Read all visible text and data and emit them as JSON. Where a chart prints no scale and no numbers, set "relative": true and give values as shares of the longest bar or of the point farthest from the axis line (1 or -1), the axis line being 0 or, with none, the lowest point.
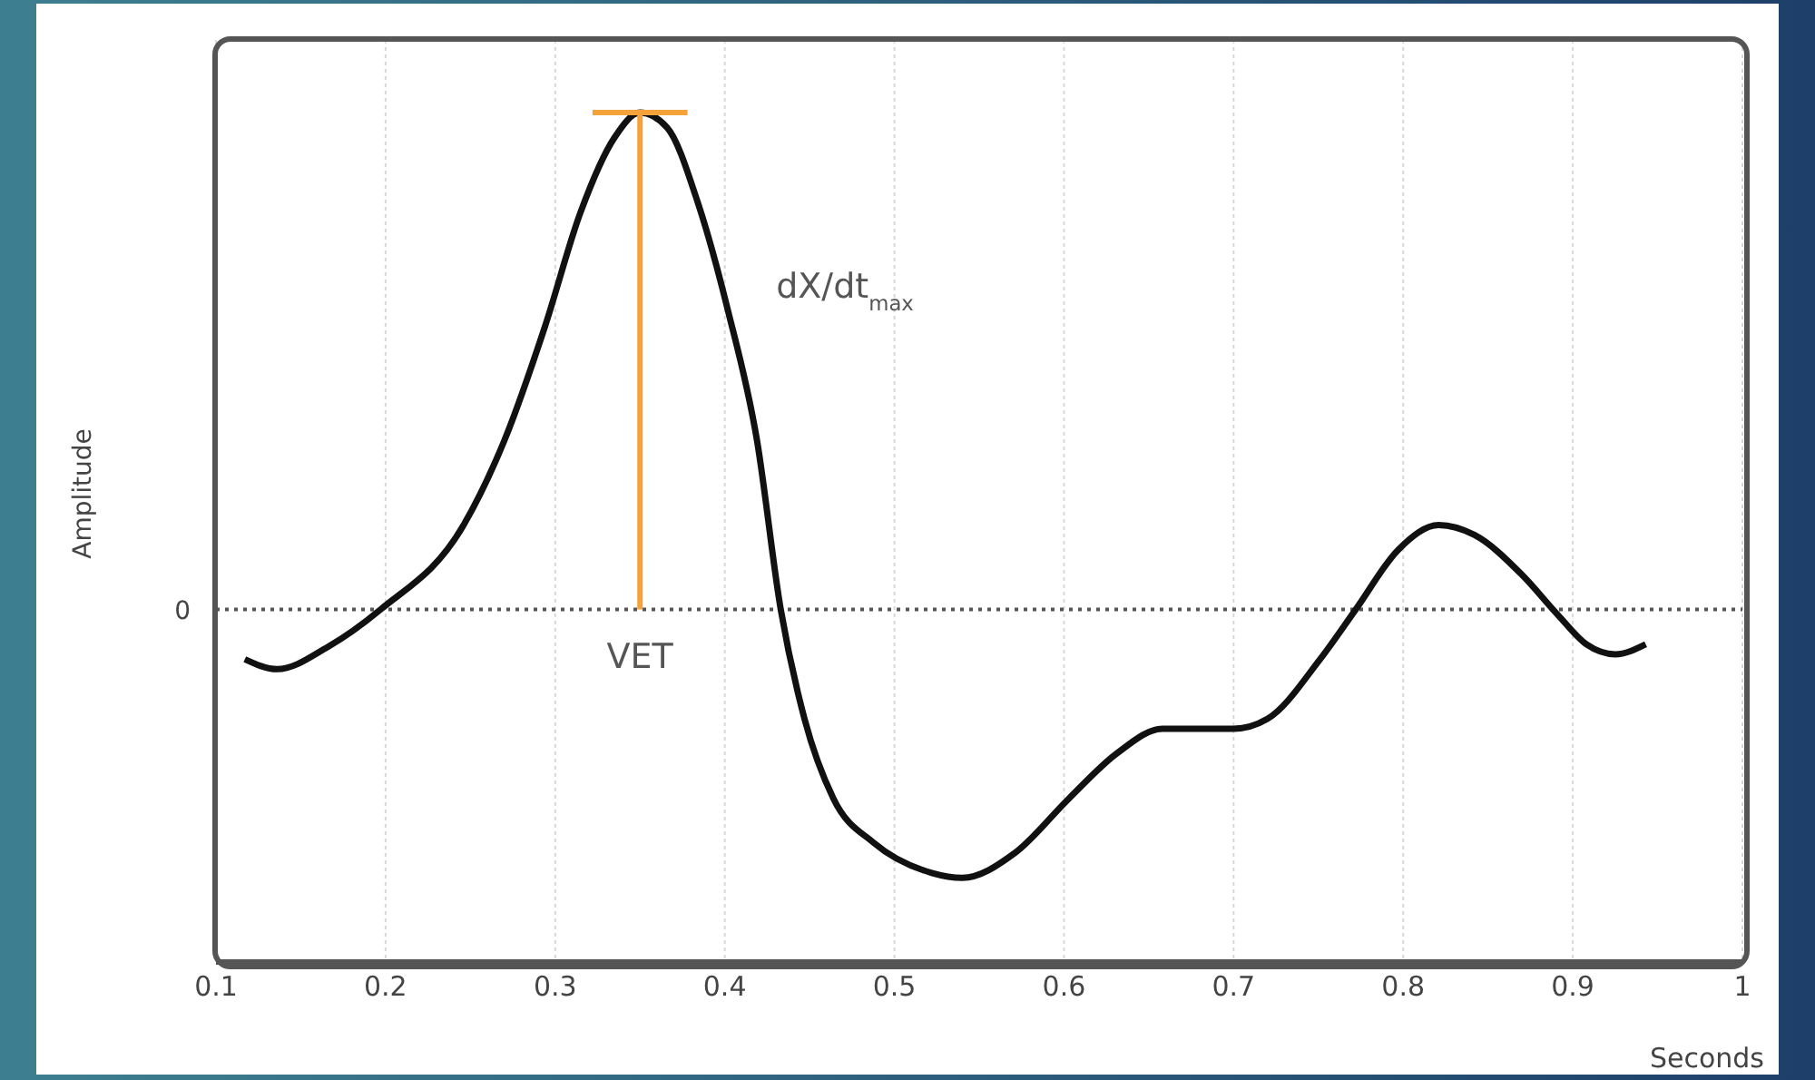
{
  "chart_data": {
    "type": "line",
    "xlabel": "Seconds",
    "ylabel": "Amplitude",
    "relative": true,
    "grid": "x",
    "marker": "none",
    "line_style": "solid",
    "x": [
      0.117,
      0.136,
      0.166,
      0.197,
      0.246,
      0.27,
      0.294,
      0.315,
      0.335,
      0.35,
      0.366,
      0.384,
      0.402,
      0.419,
      0.433,
      0.447,
      0.464,
      0.488,
      0.522,
      0.54,
      0.571,
      0.603,
      0.631,
      0.658,
      0.7,
      0.72,
      0.751,
      0.772,
      0.797,
      0.821,
      0.842,
      0.87,
      0.891,
      0.908,
      0.925,
      0.943
    ],
    "series": [
      {
        "color": "#111111",
        "values": [
          -0.1,
          -0.12,
          -0.075,
          0,
          0.17,
          0.34,
          0.57,
          0.8,
          0.95,
          1,
          0.97,
          0.82,
          0.6,
          0.34,
          0,
          -0.22,
          -0.38,
          -0.47,
          -0.53,
          -0.54,
          -0.49,
          -0.38,
          -0.29,
          -0.24,
          -0.24,
          -0.22,
          -0.1,
          0,
          0.12,
          0.17,
          0.15,
          0.07,
          -0.01,
          -0.07,
          -0.09,
          -0.07
        ]
      }
    ],
    "xlim": [
      0.1,
      1
    ],
    "xticks": [
      0.1,
      0.2,
      0.3,
      0.4,
      0.5,
      0.6,
      0.7,
      0.8,
      0.9,
      1
    ],
    "ref_lines": [
      {
        "axis": "y",
        "value": 0,
        "label": "0",
        "line_style": "dotted",
        "color": "#555555"
      }
    ],
    "annotations": [
      "dX/dt$_{max}$",
      {
        "text": "VET",
        "x": 0.35,
        "y": 0
      }
    ]
  }
}
